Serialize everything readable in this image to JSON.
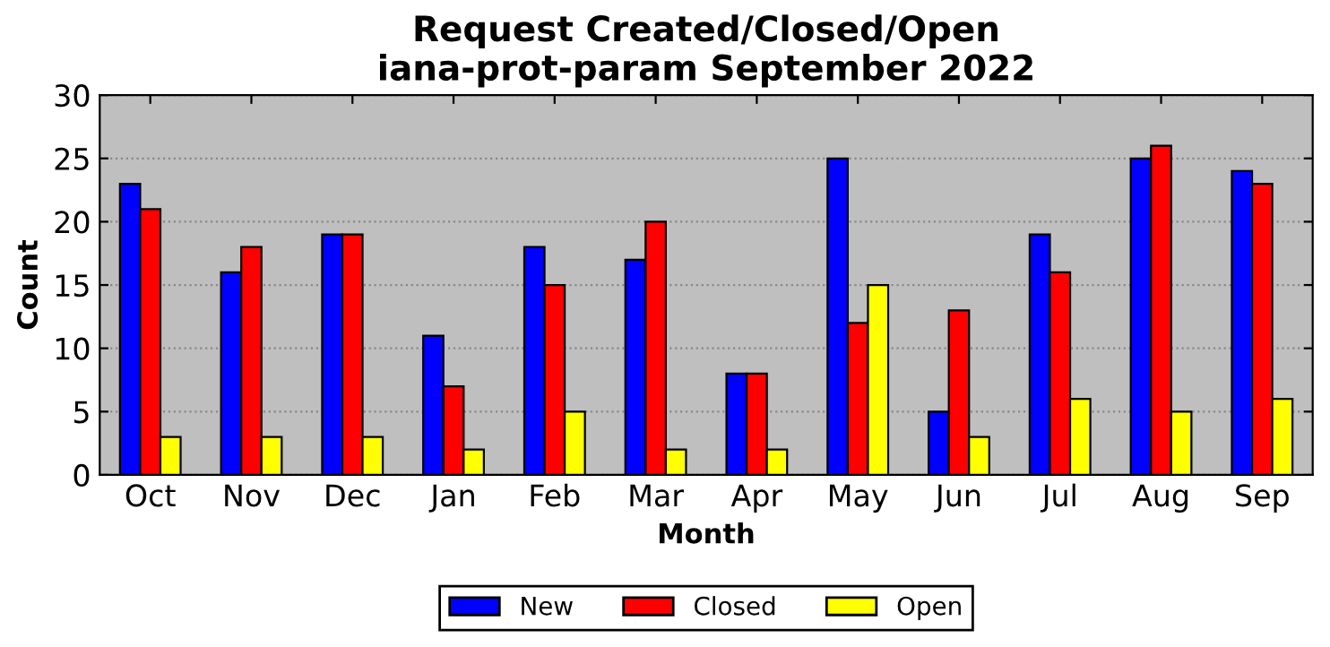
{
  "chart_data": {
    "type": "bar",
    "title": "Request Created/Closed/Open\niana-prot-param September 2022",
    "xlabel": "Month",
    "ylabel": "Count",
    "categories": [
      "Oct",
      "Nov",
      "Dec",
      "Jan",
      "Feb",
      "Mar",
      "Apr",
      "May",
      "Jun",
      "Jul",
      "Aug",
      "Sep"
    ],
    "series": [
      {
        "name": "New",
        "color": "#0000ff",
        "values": [
          23,
          16,
          19,
          11,
          18,
          17,
          8,
          25,
          5,
          19,
          25,
          24
        ]
      },
      {
        "name": "Closed",
        "color": "#ff0000",
        "values": [
          21,
          18,
          19,
          7,
          15,
          20,
          8,
          12,
          13,
          16,
          26,
          23
        ]
      },
      {
        "name": "Open",
        "color": "#ffff00",
        "values": [
          3,
          3,
          3,
          2,
          5,
          2,
          2,
          15,
          3,
          6,
          5,
          6
        ]
      }
    ],
    "ylim": [
      0,
      30
    ],
    "yticks": [
      0,
      5,
      10,
      15,
      20,
      25,
      30
    ],
    "grid": "y",
    "legend": "bottom"
  }
}
